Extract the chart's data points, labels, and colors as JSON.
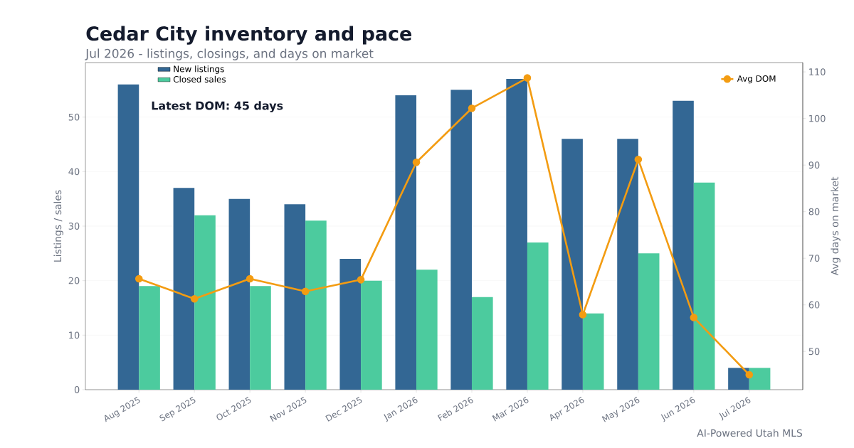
{
  "chart_data": {
    "type": "bar",
    "title": "Cedar City inventory and pace",
    "subtitle": "Jul 2026 - listings, closings, and days on market",
    "ylabel": "Listings / sales",
    "y2label": "Avg days on market",
    "categories": [
      "Aug 2025",
      "Sep 2025",
      "Oct 2025",
      "Nov 2025",
      "Dec 2025",
      "Jan 2026",
      "Feb 2026",
      "Mar 2026",
      "Apr 2026",
      "May 2026",
      "Jun 2026",
      "Jul 2026"
    ],
    "series": [
      {
        "name": "New listings",
        "color": "#336794",
        "values": [
          56,
          37,
          35,
          34,
          24,
          54,
          55,
          57,
          46,
          46,
          53,
          4
        ]
      },
      {
        "name": "Closed sales",
        "color": "#4ccb9e",
        "values": [
          19,
          32,
          19,
          31,
          20,
          22,
          17,
          27,
          14,
          25,
          38,
          4
        ]
      },
      {
        "name": "Avg DOM",
        "type": "line",
        "axis": "y2",
        "color": "#f39c12",
        "values": [
          65.6,
          61.3,
          65.6,
          62.9,
          65.4,
          90.6,
          102.2,
          108.7,
          57.9,
          91.2,
          57.3,
          45.0
        ]
      }
    ],
    "ylim": [
      0,
      60
    ],
    "yticks": [
      0,
      10,
      20,
      30,
      40,
      50
    ],
    "y2lim": [
      41.8,
      112
    ],
    "y2ticks": [
      50,
      60,
      70,
      80,
      90,
      100,
      110
    ],
    "grid": "y",
    "legend": "top",
    "marker": "circle",
    "line_style": "solid",
    "annotations": [
      "Latest DOM: 45 days",
      "AI-Powered Utah MLS"
    ]
  }
}
